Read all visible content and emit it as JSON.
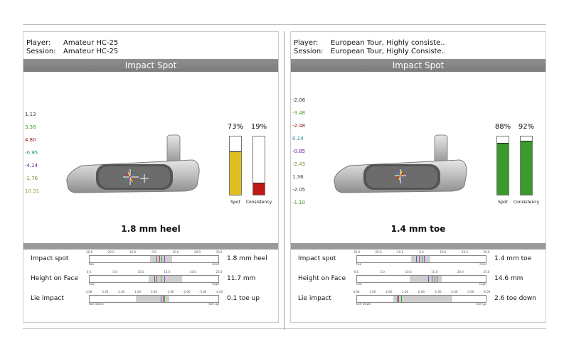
{
  "labels": {
    "player": "Player:",
    "session": "Session:",
    "section_title": "Impact Spot",
    "spot": "Spot",
    "consistency": "Consistency"
  },
  "left": {
    "player": "Amateur HC-25",
    "session": "Amateur HC-25",
    "axis": [
      "1.13",
      "3.38",
      "4.80",
      "-0.95",
      "-4.14",
      "-1.76",
      "10.31"
    ],
    "axis_colors": [
      "#3a3a3a",
      "#4a9a2a",
      "#8a1a1a",
      "#1a8a8a",
      "#6a1a9a",
      "#8a8a2a",
      "#9a9a3a"
    ],
    "spot_pct": "73%",
    "spot_value": 73,
    "spot_color": "#e0c020",
    "consistency_pct": "19%",
    "consistency_value": 19,
    "consistency_color": "#c01818",
    "result": "1.8 mm heel",
    "metrics": [
      {
        "label": "Impact spot",
        "value": "1.8 mm heel",
        "ticks": [
          "-30.0",
          "-20.0",
          "-10.0",
          "0.0",
          "10.0",
          "20.0",
          "30.0"
        ],
        "end_left": "toe",
        "end_right": "heel"
      },
      {
        "label": "Height on Face",
        "value": "11.7 mm",
        "ticks": [
          "0.0",
          "5.0",
          "10.0",
          "15.0",
          "20.0",
          "25.0"
        ],
        "end_left": "low",
        "end_right": "high"
      },
      {
        "label": "Lie impact",
        "value": "0.1 toe up",
        "ticks": [
          "4.00",
          "3.00",
          "2.00",
          "1.00",
          "0.00",
          "-1.00",
          "-2.00",
          "-3.00",
          "-4.00"
        ],
        "end_left": "toe down",
        "end_right": "toe up"
      }
    ]
  },
  "right": {
    "player": "European Tour, Highly consiste..",
    "session": "European Tour, Highly Consiste..",
    "axis": [
      "-2.06",
      "-3.48",
      "-2.48",
      "0.14",
      "-0.85",
      "-2.43",
      "1.36",
      "-2.05",
      "-1.10"
    ],
    "axis_colors": [
      "#3a3a3a",
      "#4a9a2a",
      "#8a1a1a",
      "#1a8a8a",
      "#6a1a9a",
      "#8a8a2a",
      "#3a3a3a",
      "#3a3a3a",
      "#4a9a2a"
    ],
    "spot_pct": "88%",
    "spot_value": 88,
    "spot_color": "#3c9a2c",
    "consistency_pct": "92%",
    "consistency_value": 92,
    "consistency_color": "#3c9a2c",
    "result": "1.4 mm toe",
    "metrics": [
      {
        "label": "Impact spot",
        "value": "1.4 mm toe",
        "ticks": [
          "-30.0",
          "-20.0",
          "-10.0",
          "0.0",
          "10.0",
          "20.0",
          "30.0"
        ],
        "end_left": "toe",
        "end_right": "heel"
      },
      {
        "label": "Height on Face",
        "value": "14.6 mm",
        "ticks": [
          "0.0",
          "5.0",
          "10.0",
          "15.0",
          "20.0",
          "25.0"
        ],
        "end_left": "low",
        "end_right": "high"
      },
      {
        "label": "Lie impact",
        "value": "2.6 toe down",
        "ticks": [
          "4.00",
          "3.00",
          "2.00",
          "1.00",
          "0.00",
          "-1.00",
          "-2.00",
          "-3.00",
          "-4.00"
        ],
        "end_left": "toe down",
        "end_right": "toe up"
      }
    ]
  }
}
